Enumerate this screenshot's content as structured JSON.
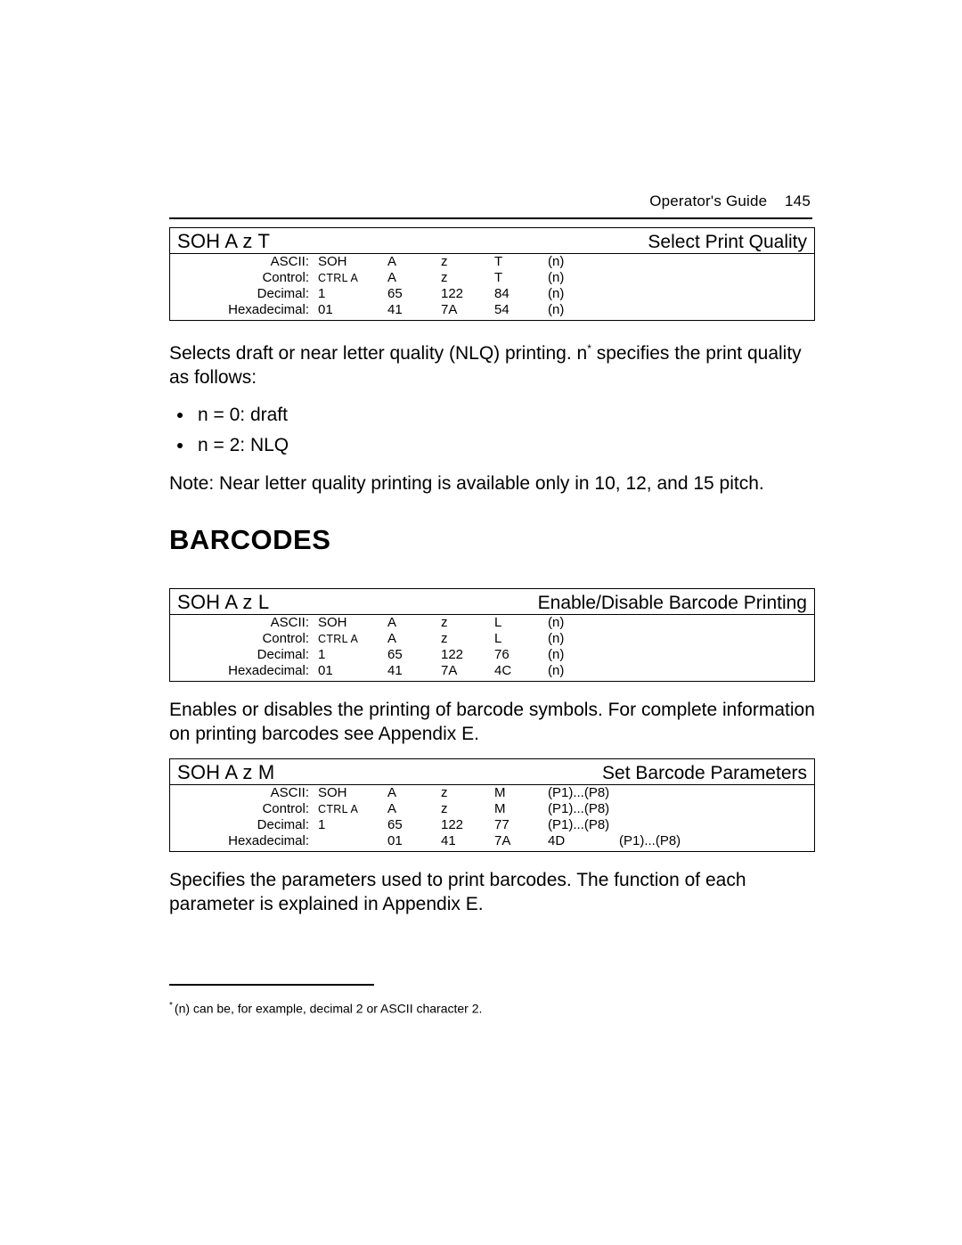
{
  "page_header": {
    "left": "Operator's Guide",
    "number": "145"
  },
  "cmd1": {
    "code": "SOH A z T",
    "title": "Select Print Quality",
    "rows": [
      {
        "label": "ASCII:",
        "c1": "SOH",
        "c2": "A",
        "c3": "z",
        "c4": "T",
        "c5": "(n)",
        "c6": "",
        "smallcaps_c1": false
      },
      {
        "label": "Control:",
        "c1": "CTRL A",
        "c2": "A",
        "c3": "z",
        "c4": "T",
        "c5": "(n)",
        "c6": "",
        "smallcaps_c1": true
      },
      {
        "label": "Decimal:",
        "c1": "1",
        "c2": "65",
        "c3": "122",
        "c4": "84",
        "c5": "(n)",
        "c6": "",
        "smallcaps_c1": false
      },
      {
        "label": "Hexadecimal:",
        "c1": "01",
        "c2": "41",
        "c3": "7A",
        "c4": "54",
        "c5": "(n)",
        "c6": "",
        "smallcaps_c1": false
      }
    ]
  },
  "para1a": "Selects draft or near letter quality (NLQ) printing.  n",
  "para1b": " specifies the print quality as follows:",
  "bullet1": "n = 0:  draft",
  "bullet2": "n = 2:  NLQ",
  "note": "Note:  Near letter quality printing is available only in 10, 12, and 15 pitch.",
  "heading_barcodes": "BARCODES",
  "cmd2": {
    "code": "SOH A z L",
    "title": "Enable/Disable Barcode Printing",
    "rows": [
      {
        "label": "ASCII:",
        "c1": "SOH",
        "c2": "A",
        "c3": "z",
        "c4": "L",
        "c5": "(n)",
        "c6": "",
        "smallcaps_c1": false
      },
      {
        "label": "Control:",
        "c1": "CTRL A",
        "c2": "A",
        "c3": "z",
        "c4": "L",
        "c5": "(n)",
        "c6": "",
        "smallcaps_c1": true
      },
      {
        "label": "Decimal:",
        "c1": "1",
        "c2": "65",
        "c3": "122",
        "c4": "76",
        "c5": "(n)",
        "c6": "",
        "smallcaps_c1": false
      },
      {
        "label": "Hexadecimal:",
        "c1": "01",
        "c2": "41",
        "c3": "7A",
        "c4": "4C",
        "c5": "(n)",
        "c6": "",
        "smallcaps_c1": false
      }
    ]
  },
  "para2": "Enables or disables the printing of barcode symbols.  For complete information on printing barcodes see Appendix E.",
  "cmd3": {
    "code": "SOH A z M",
    "title": "Set Barcode Parameters",
    "rows": [
      {
        "label": "ASCII:",
        "c1": "SOH",
        "c2": "A",
        "c3": "z",
        "c4": "M",
        "c5": "(P1)...(P8)",
        "c6": "",
        "smallcaps_c1": false
      },
      {
        "label": "Control:",
        "c1": "CTRL A",
        "c2": "A",
        "c3": "z",
        "c4": "M",
        "c5": "(P1)...(P8)",
        "c6": "",
        "smallcaps_c1": true
      },
      {
        "label": "Decimal:",
        "c1": "1",
        "c2": "65",
        "c3": "122",
        "c4": "77",
        "c5": "(P1)...(P8)",
        "c6": "",
        "smallcaps_c1": false
      },
      {
        "label": "Hexadecimal:",
        "c1": "",
        "c2": "01",
        "c3": "41",
        "c4": "7A",
        "c5": "4D",
        "c6": "(P1)...(P8)",
        "smallcaps_c1": false
      }
    ]
  },
  "para3": "Specifies the parameters used to print barcodes.  The function of each parameter is explained in Appendix E.",
  "footnote_mark": "*",
  "footnote_text": "(n) can be, for example, decimal 2 or ASCII character 2."
}
